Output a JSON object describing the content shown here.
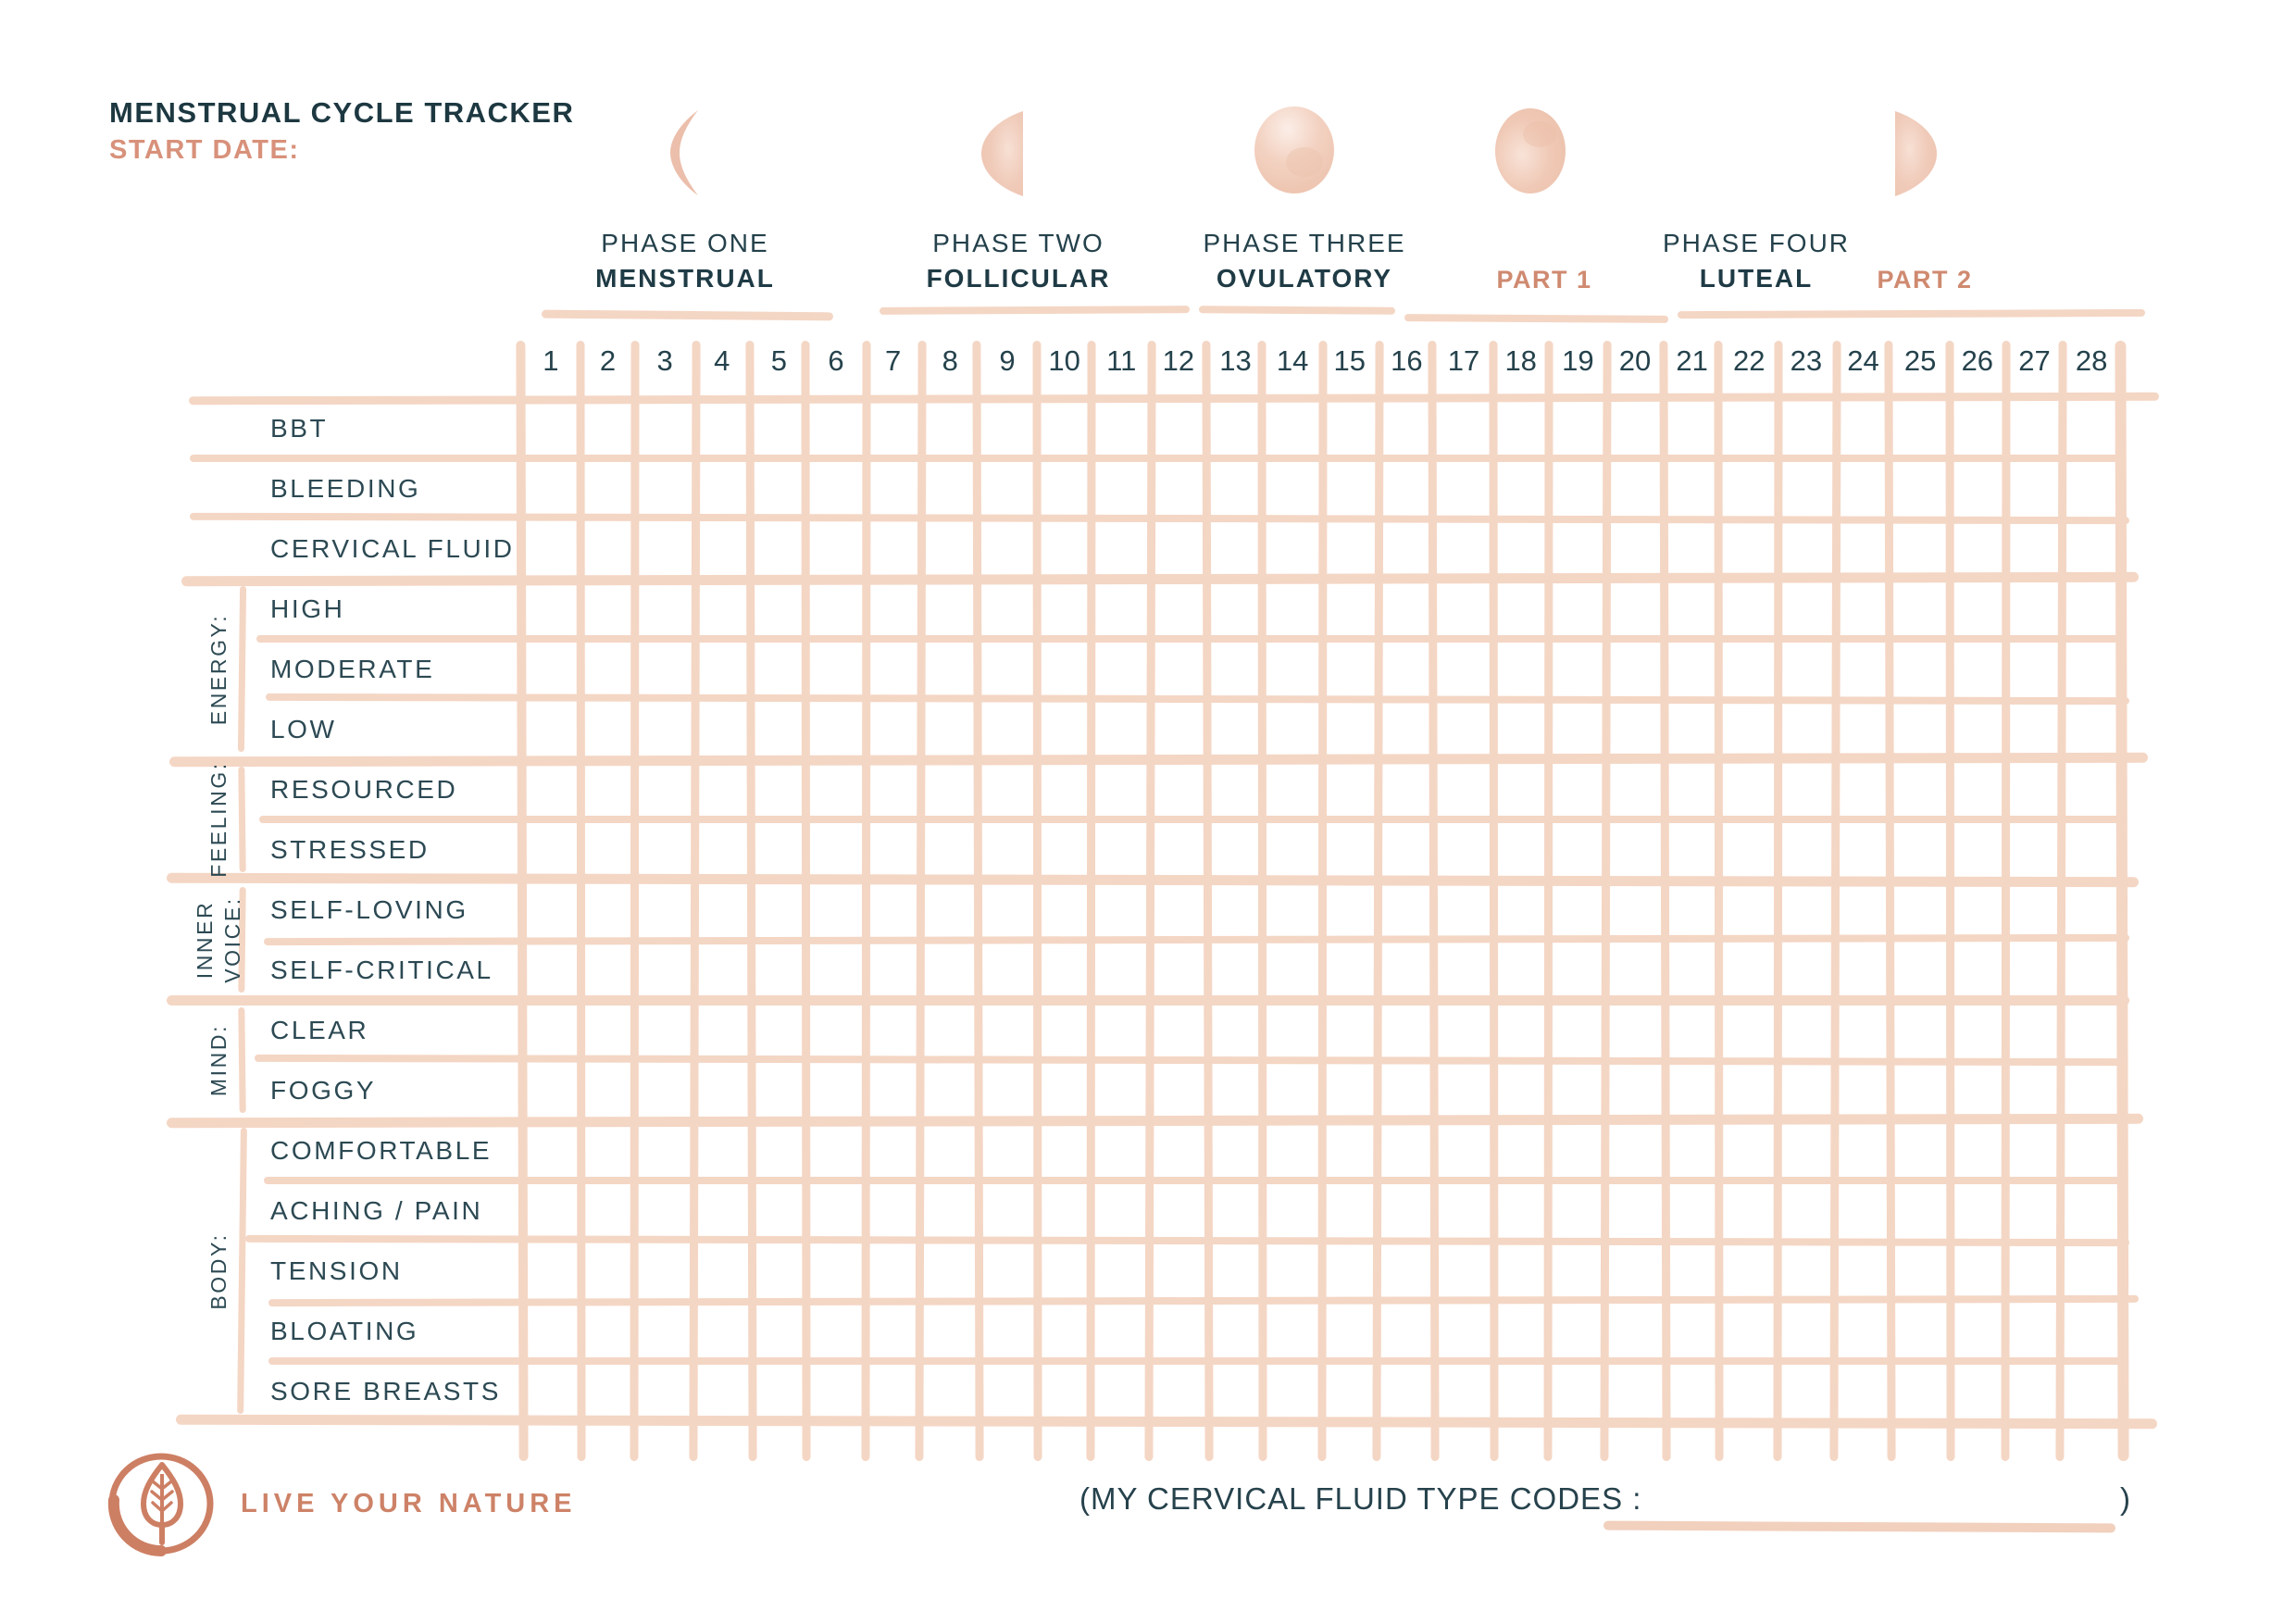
{
  "header": {
    "title": "MENSTRUAL CYCLE TRACKER",
    "start_date_label": "START DATE:"
  },
  "phases": [
    {
      "line1": "PHASE ONE",
      "line2": "MENSTRUAL",
      "moon": "waning-crescent-moon-icon"
    },
    {
      "line1": "PHASE TWO",
      "line2": "FOLLICULAR",
      "moon": "half-moon-left-icon"
    },
    {
      "line1": "PHASE THREE",
      "line2": "OVULATORY",
      "moon": "full-moon-icon"
    },
    {
      "label": "PART 1",
      "moon": "waning-gibbous-moon-icon"
    },
    {
      "line1": "PHASE FOUR",
      "line2": "LUTEAL"
    },
    {
      "label": "PART 2",
      "moon": "half-moon-right-icon"
    }
  ],
  "day_numbers": [
    "1",
    "2",
    "3",
    "4",
    "5",
    "6",
    "7",
    "8",
    "9",
    "10",
    "11",
    "12",
    "13",
    "14",
    "15",
    "16",
    "17",
    "18",
    "19",
    "20",
    "21",
    "22",
    "23",
    "24",
    "25",
    "26",
    "27",
    "28"
  ],
  "tracker": {
    "simple_rows": [
      "BBT",
      "BLEEDING",
      "CERVICAL FLUID"
    ],
    "groups": [
      {
        "label": "ENERGY:",
        "rows": [
          "HIGH",
          "MODERATE",
          "LOW"
        ]
      },
      {
        "label": "FEELING:",
        "rows": [
          "RESOURCED",
          "STRESSED"
        ]
      },
      {
        "label": "INNER VOICE:",
        "rows": [
          "SELF-LOVING",
          "SELF-CRITICAL"
        ]
      },
      {
        "label": "MIND:",
        "rows": [
          "CLEAR",
          "FOGGY"
        ]
      },
      {
        "label": "BODY:",
        "rows": [
          "COMFORTABLE",
          "ACHING / PAIN",
          "TENSION",
          "BLOATING",
          "SORE BREASTS"
        ]
      }
    ]
  },
  "footer": {
    "brand": "LIVE YOUR NATURE",
    "codes_label": "(MY CERVICAL FLUID TYPE CODES :",
    "codes_close": ")",
    "logo": "leaf-circle-logo"
  },
  "colors": {
    "ink": "#213d47",
    "coral": "#d08a72",
    "peach": "#f4d6c4",
    "moon_fill": "#f0cbba"
  }
}
